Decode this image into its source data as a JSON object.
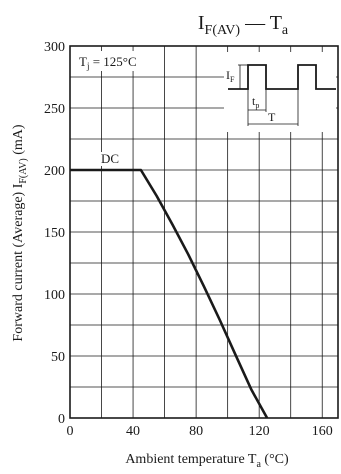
{
  "chart_data": {
    "type": "line",
    "title": {
      "main": "I",
      "main_sub": "F(AV)",
      "dash": " — ",
      "var": "T",
      "var_sub": "a"
    },
    "ylabel": {
      "text": "Forward current (Average)  I",
      "sub": "F(AV)",
      "unit": "  (mA)"
    },
    "xlabel": {
      "text": "Ambient temperature  T",
      "sub": "a",
      "unit": "  (°C)"
    },
    "xlim": [
      0,
      170
    ],
    "ylim": [
      0,
      300
    ],
    "x_ticks": [
      "0",
      "40",
      "80",
      "120",
      "160"
    ],
    "x_tick_values": [
      0,
      40,
      80,
      120,
      160
    ],
    "y_ticks": [
      "0",
      "50",
      "100",
      "150",
      "200",
      "250",
      "300"
    ],
    "y_tick_values": [
      0,
      50,
      100,
      150,
      200,
      250,
      300
    ],
    "x_grid": [
      20,
      40,
      60,
      80,
      100,
      120,
      140,
      160
    ],
    "y_grid": [
      25,
      50,
      75,
      100,
      125,
      150,
      175,
      200,
      225,
      250,
      275
    ],
    "grid": true,
    "condition": {
      "text": "T",
      "sub": "j",
      "rest": " = 125°C"
    },
    "series": [
      {
        "name": "DC",
        "x": [
          0,
          45,
          55,
          65,
          75,
          85,
          95,
          105,
          115,
          125
        ],
        "y": [
          200,
          200,
          179,
          156,
          132,
          106,
          79,
          51,
          23,
          0
        ]
      }
    ],
    "inset": {
      "if_label": "I",
      "if_sub": "F",
      "tp_label": "t",
      "tp_sub": "p",
      "t_label": "T"
    }
  }
}
